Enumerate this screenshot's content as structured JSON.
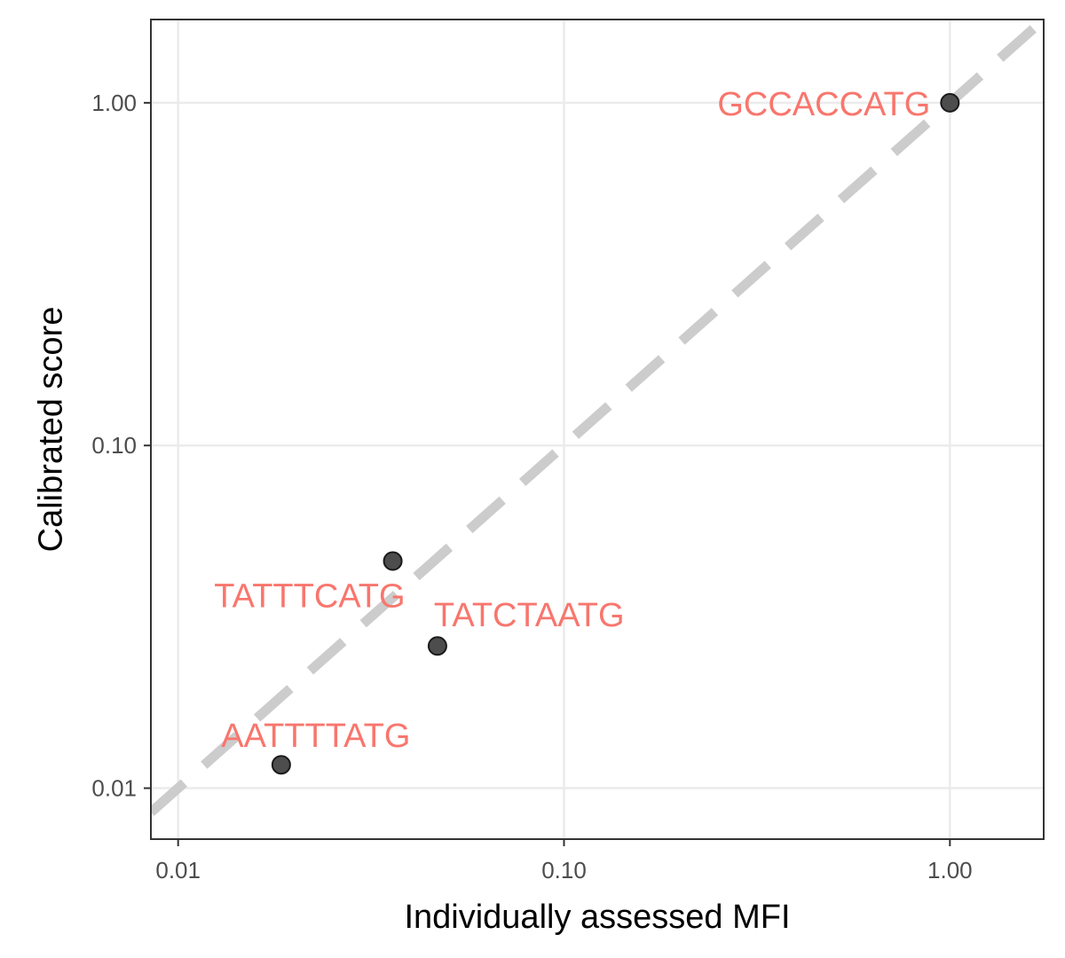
{
  "colors": {
    "background": "#ffffff",
    "panel_border": "#333333",
    "grid": "#ebebeb",
    "reference_line": "#cccccc",
    "point_fill": "#4d4d4d",
    "point_stroke": "#1a1a1a",
    "label": "#f8766d"
  },
  "chart_data": {
    "type": "scatter",
    "xlabel": "Individually assessed MFI",
    "ylabel": "Calibrated score",
    "x_scale": "log10",
    "y_scale": "log10",
    "xlim": [
      0.0085,
      1.75
    ],
    "ylim": [
      0.0071,
      1.75
    ],
    "grid": true,
    "x_ticks": [
      {
        "value": 0.01,
        "label": "0.01"
      },
      {
        "value": 0.1,
        "label": "0.10"
      },
      {
        "value": 1.0,
        "label": "1.00"
      }
    ],
    "y_ticks": [
      {
        "value": 0.01,
        "label": "0.01"
      },
      {
        "value": 0.1,
        "label": "0.10"
      },
      {
        "value": 1.0,
        "label": "1.00"
      }
    ],
    "reference_line": {
      "type": "identity",
      "style": "dashed"
    },
    "points": [
      {
        "label": "GCCACCATG",
        "x": 1.0,
        "y": 1.0,
        "label_anchor": "left"
      },
      {
        "label": "TATTTCATG",
        "x": 0.036,
        "y": 0.046,
        "label_anchor": "below-left"
      },
      {
        "label": "TATCTAATG",
        "x": 0.047,
        "y": 0.026,
        "label_anchor": "above-right"
      },
      {
        "label": "AATTTTATG",
        "x": 0.0185,
        "y": 0.0117,
        "label_anchor": "above"
      }
    ]
  }
}
